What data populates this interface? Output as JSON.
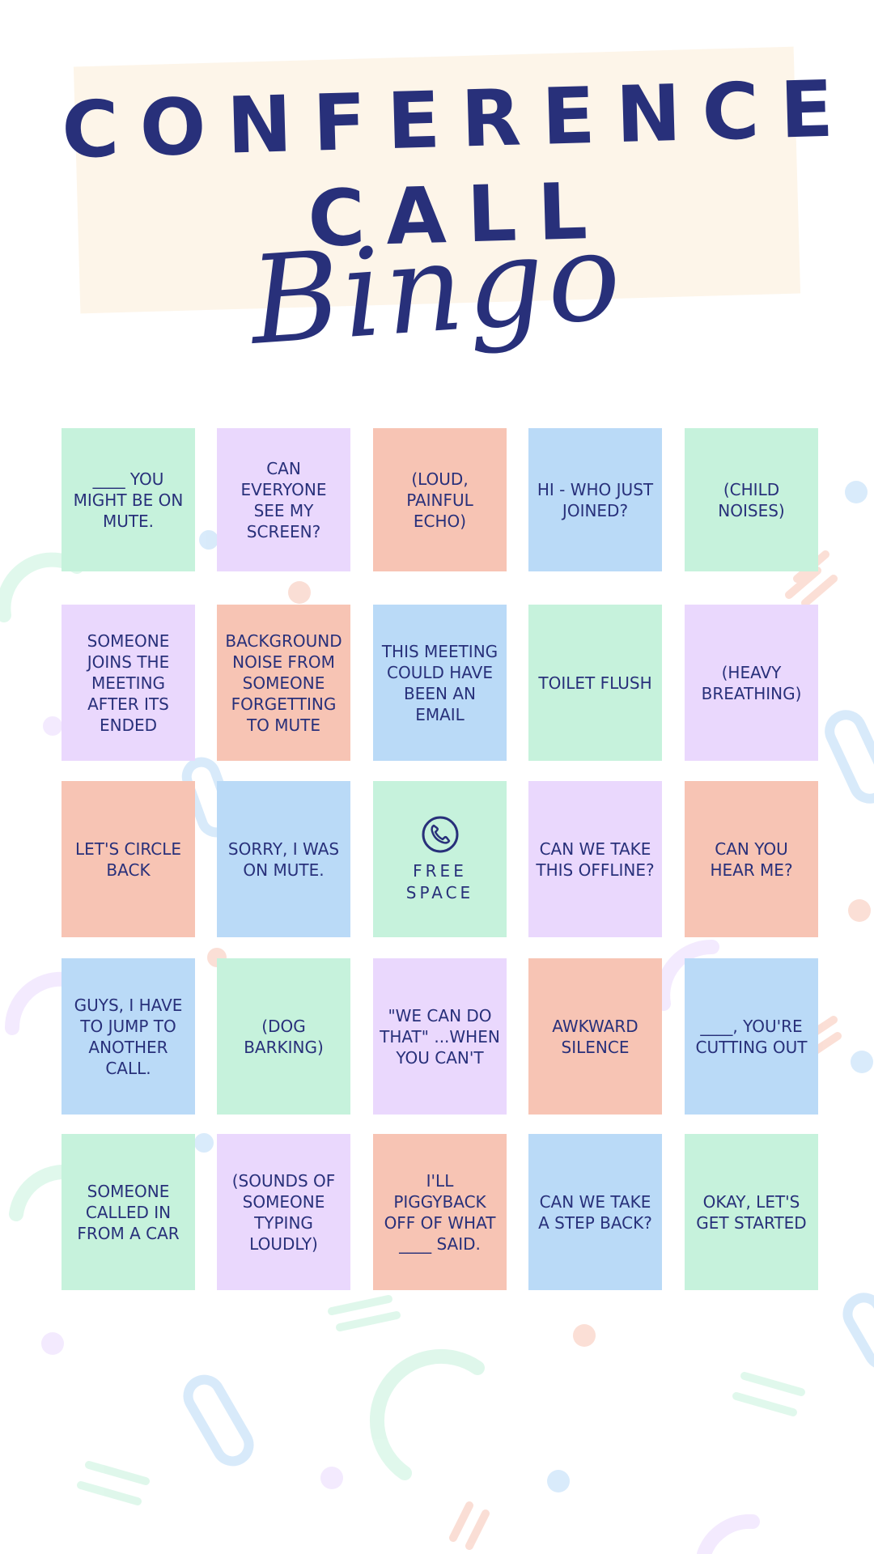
{
  "title": {
    "line1": "CONFERENCE",
    "line2": "CALL",
    "line3": "Bingo"
  },
  "colors": {
    "text": "#28307a",
    "banner": "#fdf5e9",
    "green": "#c6f2dc",
    "purple": "#ead8fd",
    "salmon": "#f7c4b4",
    "blue": "#badaf7"
  },
  "cells": [
    {
      "text": "____ YOU MIGHT BE ON MUTE.",
      "color": "#c6f2dc"
    },
    {
      "text": "CAN EVERYONE SEE MY SCREEN?",
      "color": "#ead8fd"
    },
    {
      "text": "(LOUD, PAINFUL ECHO)",
      "color": "#f7c4b4"
    },
    {
      "text": "HI - WHO JUST JOINED?",
      "color": "#badaf7"
    },
    {
      "text": "(CHILD NOISES)",
      "color": "#c6f2dc"
    },
    {
      "text": "SOMEONE JOINS THE MEETING AFTER ITS ENDED",
      "color": "#ead8fd"
    },
    {
      "text": "BACKGROUND NOISE FROM SOMEONE FORGETTING TO MUTE",
      "color": "#f7c4b4"
    },
    {
      "text": "THIS MEETING COULD HAVE BEEN AN EMAIL",
      "color": "#badaf7"
    },
    {
      "text": "TOILET FLUSH",
      "color": "#c6f2dc"
    },
    {
      "text": "(HEAVY BREATHING)",
      "color": "#ead8fd"
    },
    {
      "text": "LET'S CIRCLE BACK",
      "color": "#f7c4b4"
    },
    {
      "text": "SORRY, I WAS ON MUTE.",
      "color": "#badaf7"
    },
    {
      "text": "FREE SPACE",
      "color": "#c6f2dc",
      "free": true,
      "icon": "phone-icon"
    },
    {
      "text": "CAN WE TAKE THIS OFFLINE?",
      "color": "#ead8fd"
    },
    {
      "text": "CAN YOU HEAR ME?",
      "color": "#f7c4b4"
    },
    {
      "text": "GUYS, I HAVE TO JUMP TO ANOTHER CALL.",
      "color": "#badaf7"
    },
    {
      "text": "(DOG BARKING)",
      "color": "#c6f2dc"
    },
    {
      "text": "\"WE CAN DO THAT\" ...WHEN YOU CAN'T",
      "color": "#ead8fd"
    },
    {
      "text": "AWKWARD SILENCE",
      "color": "#f7c4b4"
    },
    {
      "text": "____, YOU'RE CUTTING OUT",
      "color": "#badaf7"
    },
    {
      "text": "SOMEONE CALLED IN FROM A CAR",
      "color": "#c6f2dc"
    },
    {
      "text": "(SOUNDS OF SOMEONE TYPING LOUDLY)",
      "color": "#ead8fd"
    },
    {
      "text": "I'LL PIGGYBACK OFF OF WHAT ____ SAID.",
      "color": "#f7c4b4"
    },
    {
      "text": "CAN WE TAKE A STEP BACK?",
      "color": "#badaf7"
    },
    {
      "text": "OKAY, LET'S GET STARTED",
      "color": "#c6f2dc"
    }
  ]
}
